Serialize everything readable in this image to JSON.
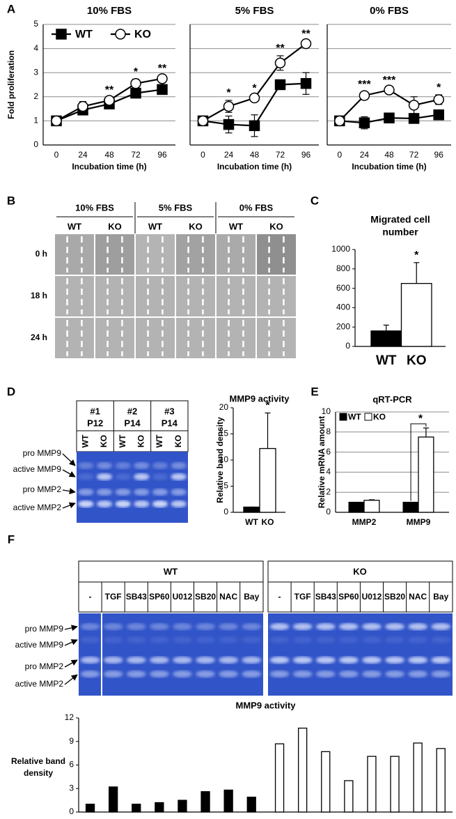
{
  "panels": [
    "A",
    "B",
    "C",
    "D",
    "E",
    "F"
  ],
  "chart_data": [
    {
      "type": "line",
      "title": "10% FBS",
      "xlabel": "Incubation time (h)",
      "ylabel": "Fold proliferation",
      "categories": [
        "0",
        "24",
        "48",
        "72",
        "96"
      ],
      "ylim": [
        0,
        5
      ],
      "yticks": [
        0,
        1,
        2,
        3,
        4,
        5
      ],
      "ytick_labels": true,
      "grid": true,
      "legend": "upper left",
      "series": [
        {
          "name": "WT",
          "marker": "square",
          "color": "#000000",
          "values": [
            1,
            1.45,
            1.7,
            2.15,
            2.3
          ],
          "errors": [
            0.05,
            0.1,
            0.1,
            0.12,
            0.15
          ]
        },
        {
          "name": "KO",
          "marker": "circle",
          "color": "#ffffff",
          "values": [
            1,
            1.6,
            1.85,
            2.55,
            2.75
          ],
          "errors": [
            0.05,
            0.2,
            0.12,
            0.18,
            0.12
          ]
        }
      ],
      "annotations": [
        {
          "x": "48",
          "label": "**"
        },
        {
          "x": "72",
          "label": "*"
        },
        {
          "x": "96",
          "label": "**"
        }
      ]
    },
    {
      "type": "line",
      "title": "5% FBS",
      "xlabel": "Incubation time (h)",
      "categories": [
        "0",
        "24",
        "48",
        "72",
        "96"
      ],
      "ylim": [
        0,
        5
      ],
      "yticks": [
        0,
        1,
        2,
        3,
        4,
        5
      ],
      "ytick_labels": false,
      "grid": true,
      "series": [
        {
          "marker": "square",
          "color": "#000000",
          "values": [
            1,
            0.85,
            0.8,
            2.5,
            2.55
          ],
          "errors": [
            0.05,
            0.35,
            0.45,
            0.12,
            0.45
          ]
        },
        {
          "marker": "circle",
          "color": "#ffffff",
          "values": [
            1,
            1.6,
            1.95,
            3.4,
            4.2
          ],
          "errors": [
            0.05,
            0.25,
            0.1,
            0.3,
            0.1
          ]
        }
      ],
      "annotations": [
        {
          "x": "24",
          "label": "*"
        },
        {
          "x": "48",
          "label": "*"
        },
        {
          "x": "72",
          "label": "**"
        },
        {
          "x": "96",
          "label": "**"
        }
      ]
    },
    {
      "type": "line",
      "title": "0% FBS",
      "xlabel": "Incubation time (h)",
      "categories": [
        "0",
        "24",
        "48",
        "72",
        "96"
      ],
      "ylim": [
        0,
        5
      ],
      "yticks": [
        0,
        1,
        2,
        3,
        4,
        5
      ],
      "ytick_labels": false,
      "grid": true,
      "series": [
        {
          "marker": "square",
          "color": "#000000",
          "values": [
            1,
            0.92,
            1.12,
            1.1,
            1.25
          ],
          "errors": [
            0.05,
            0.25,
            0.12,
            0.2,
            0.15
          ]
        },
        {
          "marker": "circle",
          "color": "#ffffff",
          "values": [
            1,
            2.05,
            2.28,
            1.65,
            1.88
          ],
          "errors": [
            0.05,
            0.15,
            0.1,
            0.35,
            0.2
          ]
        }
      ],
      "annotations": [
        {
          "x": "24",
          "label": "***"
        },
        {
          "x": "48",
          "label": "***"
        },
        {
          "x": "96",
          "label": "*"
        }
      ]
    },
    {
      "type": "bar",
      "title": [
        "Migrated cell",
        "number"
      ],
      "categories": [
        "WT",
        "KO"
      ],
      "values": [
        160,
        650
      ],
      "errors": [
        60,
        215
      ],
      "colors": [
        "#000000",
        "#ffffff"
      ],
      "ylim": [
        0,
        1000
      ],
      "yticks": [
        0,
        200,
        400,
        600,
        800,
        1000
      ],
      "grid": false,
      "annotations": [
        {
          "x": "KO",
          "label": "*"
        }
      ]
    },
    {
      "type": "bar",
      "title": "MMP9 activity",
      "ylabel": "Relative band density",
      "categories": [
        "WT",
        "KO"
      ],
      "values": [
        1,
        12.2
      ],
      "errors": [
        0,
        6.8
      ],
      "colors": [
        "#000000",
        "#ffffff"
      ],
      "ylim": [
        0,
        20
      ],
      "yticks": [
        0,
        5,
        10,
        15,
        20
      ],
      "grid": false,
      "annotations": [
        {
          "x": "KO",
          "label": "*"
        }
      ]
    },
    {
      "type": "bar",
      "title": "qRT-PCR",
      "ylabel": "Relative mRNA amount",
      "categories": [
        "MMP2",
        "MMP9"
      ],
      "series": [
        {
          "name": "WT",
          "color": "#000000",
          "values": [
            1,
            1
          ],
          "errors": [
            0,
            0
          ]
        },
        {
          "name": "KO",
          "color": "#ffffff",
          "values": [
            1.2,
            7.5
          ],
          "errors": [
            0.05,
            0.9
          ]
        }
      ],
      "ylim": [
        0,
        10
      ],
      "yticks": [
        0,
        2,
        4,
        6,
        8,
        10
      ],
      "grid": true,
      "legend": "upper left",
      "annotations": [
        {
          "x": "MMP9",
          "label": "*"
        }
      ]
    },
    {
      "type": "bar",
      "title": "MMP9 activity",
      "ylabel": [
        "Relative band",
        "density"
      ],
      "values": [
        1,
        3.2,
        1,
        1.2,
        1.5,
        2.6,
        2.8,
        1.9,
        8.7,
        10.7,
        7.7,
        4,
        7.1,
        7.1,
        8.8,
        8.1
      ],
      "colors": [
        "#000000",
        "#000000",
        "#000000",
        "#000000",
        "#000000",
        "#000000",
        "#000000",
        "#000000",
        "#ffffff",
        "#ffffff",
        "#ffffff",
        "#ffffff",
        "#ffffff",
        "#ffffff",
        "#ffffff",
        "#ffffff"
      ],
      "ylim": [
        0,
        12
      ],
      "yticks": [
        0,
        3,
        6,
        9,
        12
      ],
      "grid": false
    }
  ],
  "gel_b": {
    "groups": [
      "10% FBS",
      "5% FBS",
      "0% FBS"
    ],
    "lanes": [
      "WT",
      "KO",
      "WT",
      "KO",
      "WT",
      "KO"
    ],
    "rows": [
      "0 h",
      "18 h",
      "24 h"
    ]
  },
  "gel_d": {
    "groups": [
      [
        "#1",
        "P12"
      ],
      [
        "#2",
        "P14"
      ],
      [
        "#3",
        "P14"
      ]
    ],
    "lanes": [
      "WT",
      "KO",
      "WT",
      "KO",
      "WT",
      "KO"
    ],
    "bands": [
      "pro MMP9",
      "active MMP9",
      "pro MMP2",
      "active MMP2"
    ]
  },
  "gel_f": {
    "groups": [
      "WT",
      "KO"
    ],
    "lanes": [
      "-",
      "TGF",
      "SB43",
      "SP60",
      "U012",
      "SB20",
      "NAC",
      "Bay",
      "-",
      "TGF",
      "SB43",
      "SP60",
      "U012",
      "SB20",
      "NAC",
      "Bay"
    ],
    "bands": [
      "pro MMP9",
      "active MMP9",
      "pro MMP2",
      "active MMP2"
    ]
  }
}
